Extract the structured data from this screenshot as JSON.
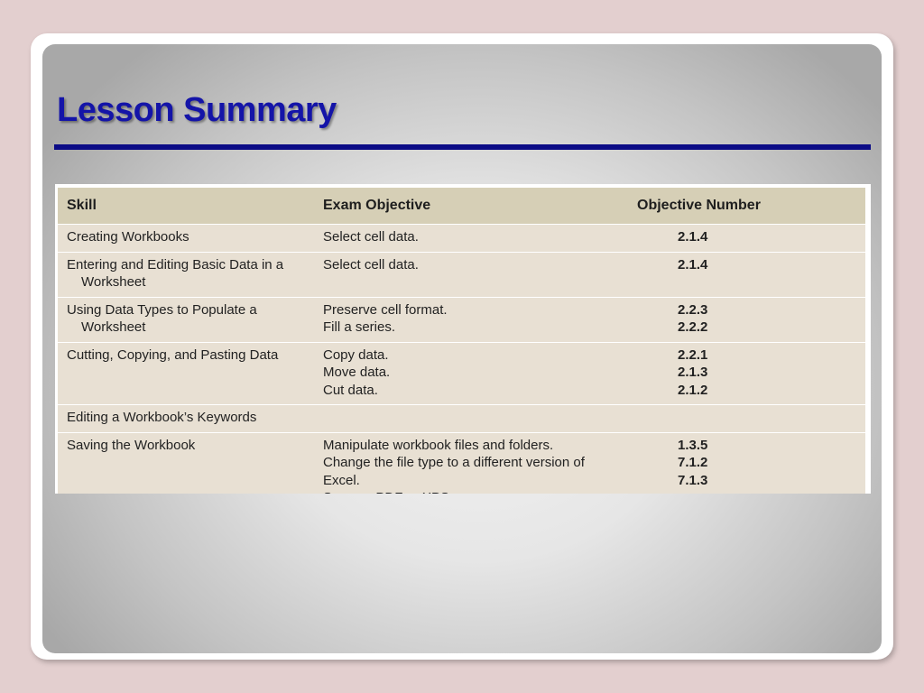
{
  "slide": {
    "title": "Lesson Summary"
  },
  "table": {
    "headers": {
      "skill": "Skill",
      "exam": "Exam Objective",
      "number": "Objective Number"
    },
    "rows": [
      {
        "skill": [
          "Creating Workbooks"
        ],
        "exam": [
          "Select cell data."
        ],
        "number": [
          "2.1.4"
        ]
      },
      {
        "skill": [
          "Entering and Editing Basic Data in a",
          "Worksheet"
        ],
        "exam": [
          "Select cell data."
        ],
        "number": [
          "2.1.4"
        ]
      },
      {
        "skill": [
          "Using Data Types to Populate a",
          "Worksheet"
        ],
        "exam": [
          "Preserve cell format.",
          "Fill a series."
        ],
        "number": [
          "2.2.3",
          "2.2.2"
        ]
      },
      {
        "skill": [
          "Cutting, Copying, and Pasting Data"
        ],
        "exam": [
          "Copy data.",
          "Move data.",
          "Cut data."
        ],
        "number": [
          "2.2.1",
          "2.1.3",
          "2.1.2"
        ]
      },
      {
        "skill": [
          "Editing a Workbook’s Keywords"
        ],
        "exam": [],
        "number": []
      },
      {
        "skill": [
          "Saving the Workbook"
        ],
        "exam": [
          "Manipulate workbook files and folders.",
          "Change the file type to a different version of Excel.",
          "Save as PDF or XPS."
        ],
        "number": [
          "1.3.5",
          "7.1.2",
          "7.1.3"
        ]
      }
    ]
  }
}
